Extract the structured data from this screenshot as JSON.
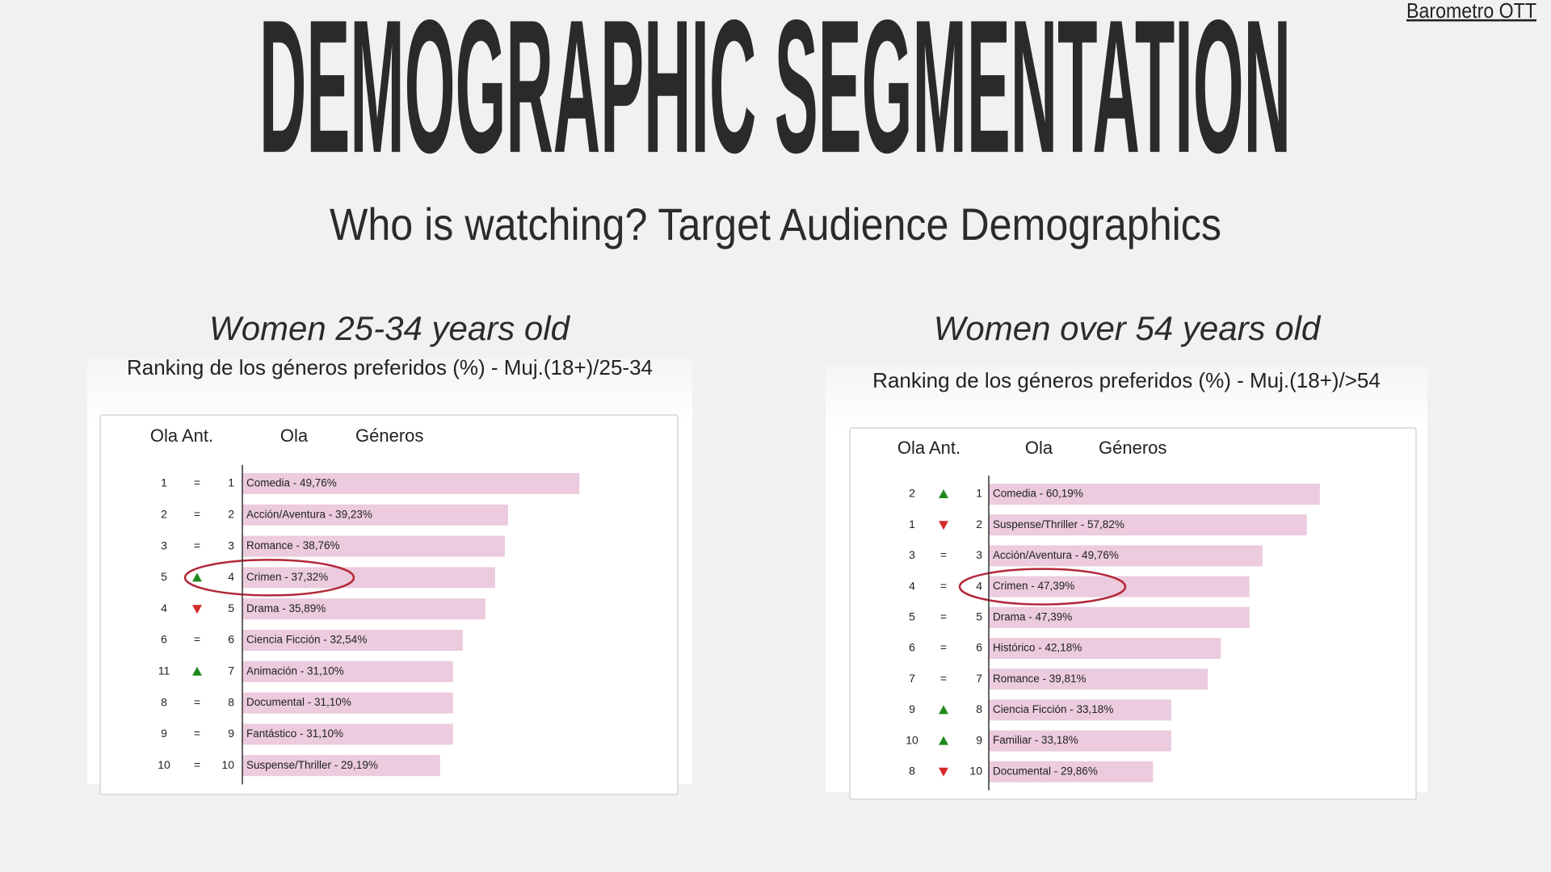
{
  "header": {
    "link": "Barometro OTT",
    "title": "DEMOGRAPHIC SEGMENTATION",
    "subtitle": "Who is watching? Target Audience Demographics"
  },
  "chart_data": [
    {
      "type": "bar",
      "orientation": "horizontal",
      "panel_title": "Women 25-34 years old",
      "title": "Ranking de los géneros preferidos (%) - Muj.(18+)/25-34",
      "column_headers": [
        "Ola Ant.",
        "Ola",
        "Géneros"
      ],
      "prev_rank": [
        1,
        2,
        3,
        5,
        4,
        6,
        11,
        8,
        9,
        10
      ],
      "rank": [
        1,
        2,
        3,
        4,
        5,
        6,
        7,
        8,
        9,
        10
      ],
      "trend": [
        0,
        0,
        0,
        1,
        -1,
        0,
        1,
        0,
        0,
        0
      ],
      "trend_same_label": "=",
      "trend_up_color": "#1e8a1e",
      "trend_down_color": "#d42a2a",
      "values": [
        49.76,
        39.23,
        38.76,
        37.32,
        35.89,
        32.54,
        31.1,
        31.1,
        31.1,
        29.19
      ],
      "value_labels": [
        "Comedia - 49,76%",
        "Acción/Aventura - 39,23%",
        "Romance - 38,76%",
        "Crimen - 37,32%",
        "Drama - 35,89%",
        "Ciencia Ficción - 32,54%",
        "Animación - 31,10%",
        "Documental - 31,10%",
        "Fantástico - 31,10%",
        "Suspense/Thriller - 29,19%"
      ],
      "color": "#ebcbdd",
      "highlight": 3,
      "highlight_color": "#b3283a",
      "xlim": [
        0,
        52
      ]
    },
    {
      "type": "bar",
      "orientation": "horizontal",
      "panel_title": "Women over 54 years old",
      "title": "Ranking de los géneros preferidos (%) - Muj.(18+)/>54",
      "column_headers": [
        "Ola Ant.",
        "Ola",
        "Géneros"
      ],
      "prev_rank": [
        2,
        1,
        3,
        4,
        5,
        6,
        7,
        9,
        10,
        8
      ],
      "rank": [
        1,
        2,
        3,
        4,
        5,
        6,
        7,
        8,
        9,
        10
      ],
      "trend": [
        1,
        -1,
        0,
        0,
        0,
        0,
        0,
        1,
        1,
        -1
      ],
      "trend_same_label": "=",
      "trend_up_color": "#1e8a1e",
      "trend_down_color": "#d42a2a",
      "values": [
        60.19,
        57.82,
        49.76,
        47.39,
        47.39,
        42.18,
        39.81,
        33.18,
        33.18,
        29.86
      ],
      "value_labels": [
        "Comedia - 60,19%",
        "Suspense/Thriller - 57,82%",
        "Acción/Aventura - 49,76%",
        "Crimen - 47,39%",
        "Drama - 47,39%",
        "Histórico - 42,18%",
        "Romance - 39,81%",
        "Ciencia Ficción - 33,18%",
        "Familiar - 33,18%",
        "Documental - 29,86%"
      ],
      "color": "#ebcbdd",
      "highlight": 3,
      "highlight_color": "#b3283a",
      "xlim": [
        0,
        63
      ]
    }
  ]
}
